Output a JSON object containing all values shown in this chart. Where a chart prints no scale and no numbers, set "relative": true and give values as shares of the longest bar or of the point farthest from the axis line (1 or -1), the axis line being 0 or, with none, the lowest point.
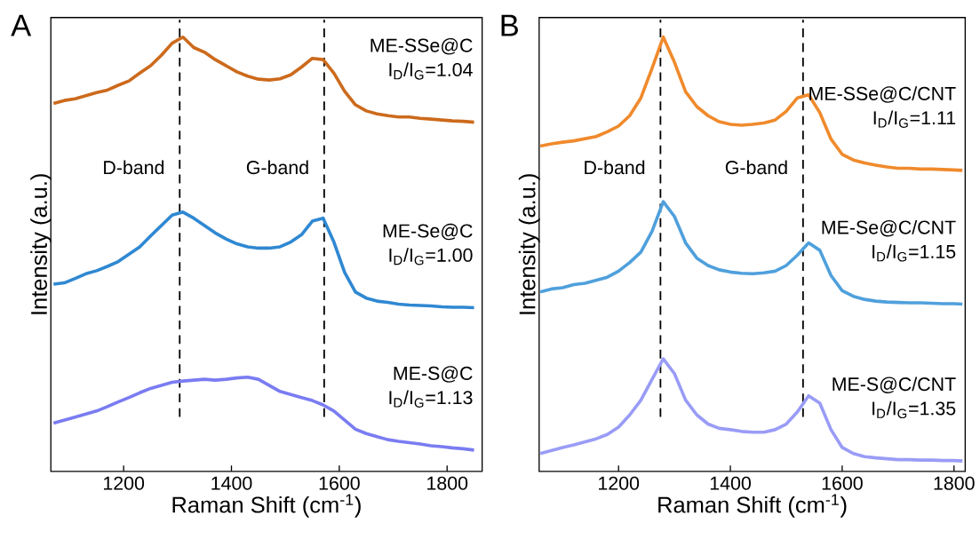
{
  "chart_data": [
    {
      "type": "line",
      "title": "A",
      "xlabel": "Raman Shift (cm$^{-1}$)",
      "ylabel": "Intensity (a.u.)",
      "relative": true,
      "x": [
        1070,
        1090,
        1110,
        1130,
        1150,
        1170,
        1190,
        1210,
        1230,
        1250,
        1270,
        1290,
        1310,
        1330,
        1350,
        1370,
        1390,
        1410,
        1430,
        1450,
        1470,
        1490,
        1510,
        1530,
        1550,
        1570,
        1590,
        1610,
        1630,
        1650,
        1670,
        1690,
        1710,
        1730,
        1750,
        1770,
        1790,
        1810,
        1830,
        1850
      ],
      "xlim": [
        1065,
        1865
      ],
      "xticks": [
        1200,
        1400,
        1600,
        1800
      ],
      "series": [
        {
          "name": "ME-SSe@C",
          "color": "#cc6a1c",
          "values": [
            0.847,
            0.854,
            0.858,
            0.865,
            0.872,
            0.878,
            0.889,
            0.899,
            0.917,
            0.934,
            0.958,
            0.986,
            1.0,
            0.976,
            0.965,
            0.948,
            0.934,
            0.92,
            0.91,
            0.903,
            0.901,
            0.904,
            0.913,
            0.931,
            0.951,
            0.948,
            0.917,
            0.875,
            0.844,
            0.83,
            0.823,
            0.819,
            0.816,
            0.816,
            0.813,
            0.811,
            0.809,
            0.807,
            0.806,
            0.804
          ]
        },
        {
          "name": "ME-Se@C",
          "color": "#2f88d2",
          "values": [
            0.431,
            0.434,
            0.444,
            0.455,
            0.462,
            0.472,
            0.483,
            0.5,
            0.517,
            0.542,
            0.566,
            0.59,
            0.597,
            0.583,
            0.566,
            0.549,
            0.535,
            0.524,
            0.517,
            0.514,
            0.514,
            0.517,
            0.528,
            0.545,
            0.576,
            0.583,
            0.528,
            0.458,
            0.413,
            0.399,
            0.392,
            0.389,
            0.385,
            0.383,
            0.382,
            0.381,
            0.379,
            0.378,
            0.378,
            0.377
          ]
        },
        {
          "name": "ME-S@C",
          "color": "#7a7cf2",
          "values": [
            0.111,
            0.118,
            0.125,
            0.132,
            0.139,
            0.149,
            0.16,
            0.17,
            0.181,
            0.191,
            0.198,
            0.205,
            0.208,
            0.21,
            0.212,
            0.21,
            0.212,
            0.215,
            0.217,
            0.212,
            0.198,
            0.184,
            0.177,
            0.17,
            0.163,
            0.153,
            0.139,
            0.118,
            0.097,
            0.087,
            0.08,
            0.073,
            0.069,
            0.066,
            0.063,
            0.059,
            0.057,
            0.054,
            0.052,
            0.049
          ]
        }
      ],
      "ref_lines": [
        {
          "axis": "x",
          "value": 1304,
          "label": "D-band",
          "color": "#000000",
          "line_style": "dashed"
        },
        {
          "axis": "x",
          "value": 1572,
          "label": "G-band",
          "color": "#000000",
          "line_style": "dashed"
        }
      ],
      "annotations": [
        "I$_{D}$/I$_{G}$=1.04",
        "I$_{D}$/I$_{G}$=1.00",
        "I$_{D}$/I$_{G}$=1.13"
      ]
    },
    {
      "type": "line",
      "title": "B",
      "xlabel": "Raman Shift (cm$^{-1}$)",
      "ylabel": "Intensity (a.u.)",
      "relative": true,
      "x": [
        1060,
        1080,
        1100,
        1120,
        1140,
        1160,
        1180,
        1200,
        1220,
        1240,
        1260,
        1280,
        1300,
        1320,
        1340,
        1360,
        1380,
        1400,
        1420,
        1440,
        1460,
        1480,
        1500,
        1520,
        1540,
        1560,
        1580,
        1600,
        1620,
        1640,
        1660,
        1680,
        1700,
        1720,
        1740,
        1760,
        1780,
        1800,
        1815
      ],
      "xlim": [
        1058,
        1820
      ],
      "xticks": [
        1200,
        1400,
        1600,
        1800
      ],
      "series": [
        {
          "name": "ME-SSe@C/CNT",
          "color": "#f08a2c",
          "values": [
            0.749,
            0.754,
            0.758,
            0.761,
            0.766,
            0.771,
            0.782,
            0.795,
            0.819,
            0.86,
            0.928,
            1.0,
            0.942,
            0.874,
            0.84,
            0.819,
            0.805,
            0.799,
            0.797,
            0.799,
            0.802,
            0.809,
            0.829,
            0.86,
            0.867,
            0.826,
            0.765,
            0.73,
            0.717,
            0.71,
            0.705,
            0.701,
            0.698,
            0.698,
            0.696,
            0.696,
            0.695,
            0.694,
            0.693
          ]
        },
        {
          "name": "ME-Se@C/CNT",
          "color": "#4fa0dc",
          "values": [
            0.413,
            0.42,
            0.423,
            0.43,
            0.433,
            0.44,
            0.447,
            0.461,
            0.481,
            0.505,
            0.553,
            0.621,
            0.587,
            0.526,
            0.491,
            0.474,
            0.464,
            0.459,
            0.456,
            0.455,
            0.457,
            0.461,
            0.474,
            0.498,
            0.526,
            0.509,
            0.451,
            0.416,
            0.403,
            0.396,
            0.392,
            0.39,
            0.389,
            0.388,
            0.388,
            0.387,
            0.386,
            0.386,
            0.385
          ]
        },
        {
          "name": "ME-S@C/CNT",
          "color": "#999cf6",
          "values": [
            0.041,
            0.048,
            0.055,
            0.061,
            0.068,
            0.075,
            0.085,
            0.102,
            0.13,
            0.164,
            0.212,
            0.259,
            0.225,
            0.164,
            0.13,
            0.109,
            0.099,
            0.096,
            0.092,
            0.09,
            0.09,
            0.096,
            0.109,
            0.137,
            0.174,
            0.157,
            0.096,
            0.055,
            0.041,
            0.034,
            0.031,
            0.029,
            0.027,
            0.027,
            0.026,
            0.026,
            0.025,
            0.025,
            0.024
          ]
        }
      ],
      "ref_lines": [
        {
          "axis": "x",
          "value": 1275,
          "label": "D-band",
          "color": "#000000",
          "line_style": "dashed"
        },
        {
          "axis": "x",
          "value": 1530,
          "label": "G-band",
          "color": "#000000",
          "line_style": "dashed"
        }
      ],
      "annotations": [
        "I$_{D}$/I$_{G}$=1.11",
        "I$_{D}$/I$_{G}$=1.15",
        "I$_{D}$/I$_{G}$=1.35"
      ]
    }
  ]
}
